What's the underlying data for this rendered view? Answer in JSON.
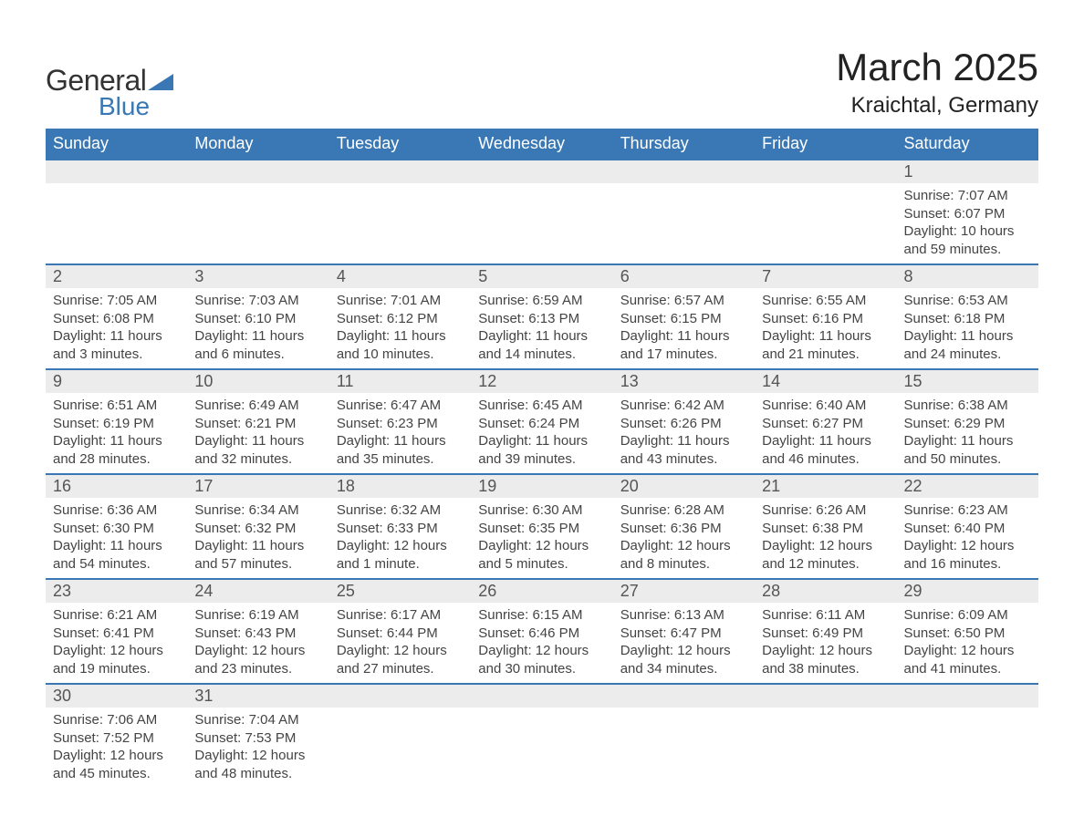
{
  "logo": {
    "text_general": "General",
    "text_blue": "Blue",
    "triangle_color": "#3a78b5"
  },
  "title": "March 2025",
  "location": "Kraichtal, Germany",
  "colors": {
    "header_bg": "#3a78b5",
    "header_text": "#ffffff",
    "daynum_bg": "#ececec",
    "row_divider": "#3a78b5",
    "body_text": "#444444"
  },
  "day_headers": [
    "Sunday",
    "Monday",
    "Tuesday",
    "Wednesday",
    "Thursday",
    "Friday",
    "Saturday"
  ],
  "calendar_type": "month-grid",
  "weeks": [
    {
      "cells": [
        null,
        null,
        null,
        null,
        null,
        null,
        {
          "day": "1",
          "sunrise": "Sunrise: 7:07 AM",
          "sunset": "Sunset: 6:07 PM",
          "daylight1": "Daylight: 10 hours",
          "daylight2": "and 59 minutes."
        }
      ]
    },
    {
      "cells": [
        {
          "day": "2",
          "sunrise": "Sunrise: 7:05 AM",
          "sunset": "Sunset: 6:08 PM",
          "daylight1": "Daylight: 11 hours",
          "daylight2": "and 3 minutes."
        },
        {
          "day": "3",
          "sunrise": "Sunrise: 7:03 AM",
          "sunset": "Sunset: 6:10 PM",
          "daylight1": "Daylight: 11 hours",
          "daylight2": "and 6 minutes."
        },
        {
          "day": "4",
          "sunrise": "Sunrise: 7:01 AM",
          "sunset": "Sunset: 6:12 PM",
          "daylight1": "Daylight: 11 hours",
          "daylight2": "and 10 minutes."
        },
        {
          "day": "5",
          "sunrise": "Sunrise: 6:59 AM",
          "sunset": "Sunset: 6:13 PM",
          "daylight1": "Daylight: 11 hours",
          "daylight2": "and 14 minutes."
        },
        {
          "day": "6",
          "sunrise": "Sunrise: 6:57 AM",
          "sunset": "Sunset: 6:15 PM",
          "daylight1": "Daylight: 11 hours",
          "daylight2": "and 17 minutes."
        },
        {
          "day": "7",
          "sunrise": "Sunrise: 6:55 AM",
          "sunset": "Sunset: 6:16 PM",
          "daylight1": "Daylight: 11 hours",
          "daylight2": "and 21 minutes."
        },
        {
          "day": "8",
          "sunrise": "Sunrise: 6:53 AM",
          "sunset": "Sunset: 6:18 PM",
          "daylight1": "Daylight: 11 hours",
          "daylight2": "and 24 minutes."
        }
      ]
    },
    {
      "cells": [
        {
          "day": "9",
          "sunrise": "Sunrise: 6:51 AM",
          "sunset": "Sunset: 6:19 PM",
          "daylight1": "Daylight: 11 hours",
          "daylight2": "and 28 minutes."
        },
        {
          "day": "10",
          "sunrise": "Sunrise: 6:49 AM",
          "sunset": "Sunset: 6:21 PM",
          "daylight1": "Daylight: 11 hours",
          "daylight2": "and 32 minutes."
        },
        {
          "day": "11",
          "sunrise": "Sunrise: 6:47 AM",
          "sunset": "Sunset: 6:23 PM",
          "daylight1": "Daylight: 11 hours",
          "daylight2": "and 35 minutes."
        },
        {
          "day": "12",
          "sunrise": "Sunrise: 6:45 AM",
          "sunset": "Sunset: 6:24 PM",
          "daylight1": "Daylight: 11 hours",
          "daylight2": "and 39 minutes."
        },
        {
          "day": "13",
          "sunrise": "Sunrise: 6:42 AM",
          "sunset": "Sunset: 6:26 PM",
          "daylight1": "Daylight: 11 hours",
          "daylight2": "and 43 minutes."
        },
        {
          "day": "14",
          "sunrise": "Sunrise: 6:40 AM",
          "sunset": "Sunset: 6:27 PM",
          "daylight1": "Daylight: 11 hours",
          "daylight2": "and 46 minutes."
        },
        {
          "day": "15",
          "sunrise": "Sunrise: 6:38 AM",
          "sunset": "Sunset: 6:29 PM",
          "daylight1": "Daylight: 11 hours",
          "daylight2": "and 50 minutes."
        }
      ]
    },
    {
      "cells": [
        {
          "day": "16",
          "sunrise": "Sunrise: 6:36 AM",
          "sunset": "Sunset: 6:30 PM",
          "daylight1": "Daylight: 11 hours",
          "daylight2": "and 54 minutes."
        },
        {
          "day": "17",
          "sunrise": "Sunrise: 6:34 AM",
          "sunset": "Sunset: 6:32 PM",
          "daylight1": "Daylight: 11 hours",
          "daylight2": "and 57 minutes."
        },
        {
          "day": "18",
          "sunrise": "Sunrise: 6:32 AM",
          "sunset": "Sunset: 6:33 PM",
          "daylight1": "Daylight: 12 hours",
          "daylight2": "and 1 minute."
        },
        {
          "day": "19",
          "sunrise": "Sunrise: 6:30 AM",
          "sunset": "Sunset: 6:35 PM",
          "daylight1": "Daylight: 12 hours",
          "daylight2": "and 5 minutes."
        },
        {
          "day": "20",
          "sunrise": "Sunrise: 6:28 AM",
          "sunset": "Sunset: 6:36 PM",
          "daylight1": "Daylight: 12 hours",
          "daylight2": "and 8 minutes."
        },
        {
          "day": "21",
          "sunrise": "Sunrise: 6:26 AM",
          "sunset": "Sunset: 6:38 PM",
          "daylight1": "Daylight: 12 hours",
          "daylight2": "and 12 minutes."
        },
        {
          "day": "22",
          "sunrise": "Sunrise: 6:23 AM",
          "sunset": "Sunset: 6:40 PM",
          "daylight1": "Daylight: 12 hours",
          "daylight2": "and 16 minutes."
        }
      ]
    },
    {
      "cells": [
        {
          "day": "23",
          "sunrise": "Sunrise: 6:21 AM",
          "sunset": "Sunset: 6:41 PM",
          "daylight1": "Daylight: 12 hours",
          "daylight2": "and 19 minutes."
        },
        {
          "day": "24",
          "sunrise": "Sunrise: 6:19 AM",
          "sunset": "Sunset: 6:43 PM",
          "daylight1": "Daylight: 12 hours",
          "daylight2": "and 23 minutes."
        },
        {
          "day": "25",
          "sunrise": "Sunrise: 6:17 AM",
          "sunset": "Sunset: 6:44 PM",
          "daylight1": "Daylight: 12 hours",
          "daylight2": "and 27 minutes."
        },
        {
          "day": "26",
          "sunrise": "Sunrise: 6:15 AM",
          "sunset": "Sunset: 6:46 PM",
          "daylight1": "Daylight: 12 hours",
          "daylight2": "and 30 minutes."
        },
        {
          "day": "27",
          "sunrise": "Sunrise: 6:13 AM",
          "sunset": "Sunset: 6:47 PM",
          "daylight1": "Daylight: 12 hours",
          "daylight2": "and 34 minutes."
        },
        {
          "day": "28",
          "sunrise": "Sunrise: 6:11 AM",
          "sunset": "Sunset: 6:49 PM",
          "daylight1": "Daylight: 12 hours",
          "daylight2": "and 38 minutes."
        },
        {
          "day": "29",
          "sunrise": "Sunrise: 6:09 AM",
          "sunset": "Sunset: 6:50 PM",
          "daylight1": "Daylight: 12 hours",
          "daylight2": "and 41 minutes."
        }
      ]
    },
    {
      "cells": [
        {
          "day": "30",
          "sunrise": "Sunrise: 7:06 AM",
          "sunset": "Sunset: 7:52 PM",
          "daylight1": "Daylight: 12 hours",
          "daylight2": "and 45 minutes."
        },
        {
          "day": "31",
          "sunrise": "Sunrise: 7:04 AM",
          "sunset": "Sunset: 7:53 PM",
          "daylight1": "Daylight: 12 hours",
          "daylight2": "and 48 minutes."
        },
        null,
        null,
        null,
        null,
        null
      ]
    }
  ]
}
